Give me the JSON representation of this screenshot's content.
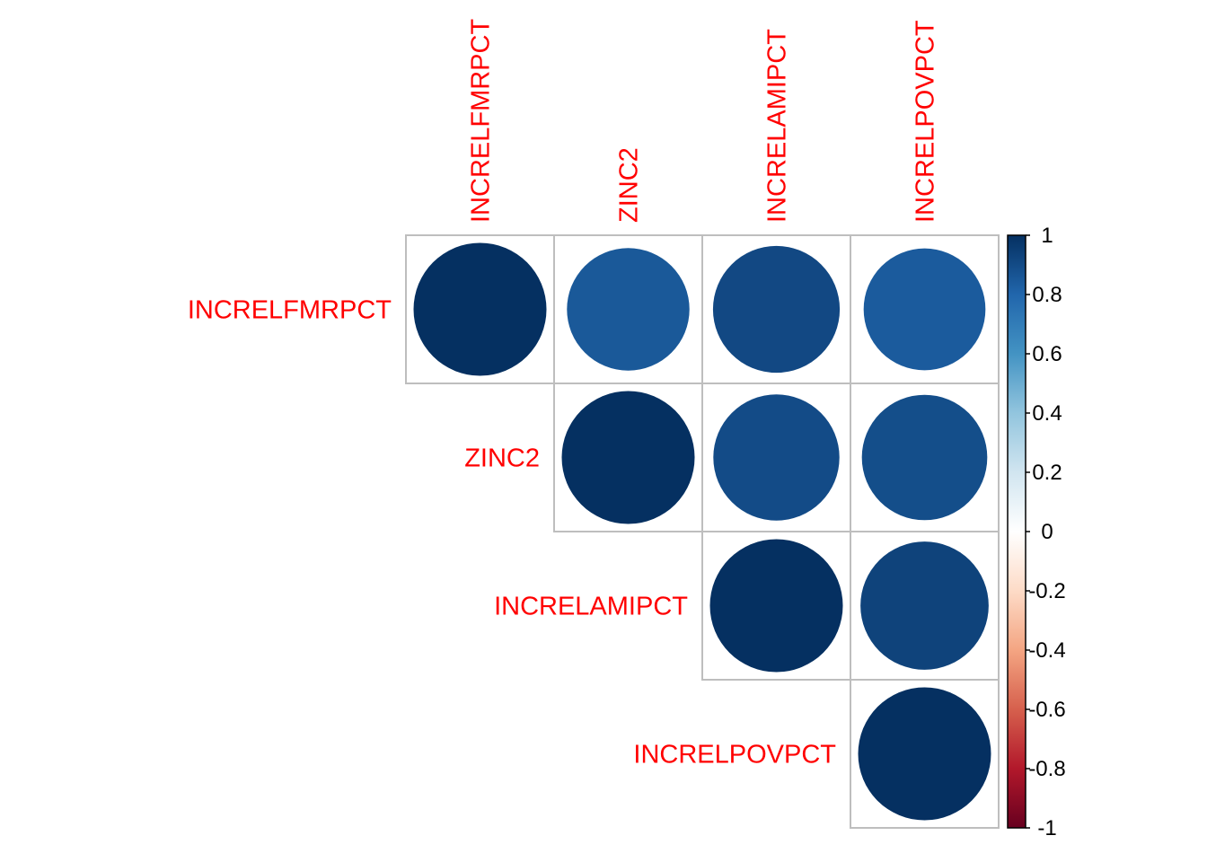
{
  "chart_data": {
    "type": "heatmap",
    "subtype": "correlation-circles-upper-triangle",
    "variables": [
      "INCRELFMRPCT",
      "ZINC2",
      "INCRELAMIPCT",
      "INCRELPOVPCT"
    ],
    "matrix": [
      [
        1.0,
        0.85,
        0.91,
        0.84
      ],
      [
        0.85,
        1.0,
        0.9,
        0.89
      ],
      [
        0.91,
        0.9,
        1.0,
        0.93
      ],
      [
        0.84,
        0.89,
        0.93,
        1.0
      ]
    ],
    "label_color": "#ff0000",
    "colorbar": {
      "range": [
        -1,
        1
      ],
      "ticks": [
        1,
        0.8,
        0.6,
        0.4,
        0.2,
        0,
        -0.2,
        -0.4,
        -0.6,
        -0.8,
        -1
      ],
      "tick_labels": [
        "1",
        "0.8",
        "0.6",
        "0.4",
        "0.2",
        "0",
        "-0.2",
        "-0.4",
        "-0.6",
        "-0.8",
        "-1"
      ],
      "colors": [
        "#67001F",
        "#B2182B",
        "#D6604D",
        "#F4A582",
        "#FDDBC7",
        "#FFFFFF",
        "#D1E5F0",
        "#92C5DE",
        "#4393C3",
        "#2166AC",
        "#053061"
      ]
    }
  }
}
